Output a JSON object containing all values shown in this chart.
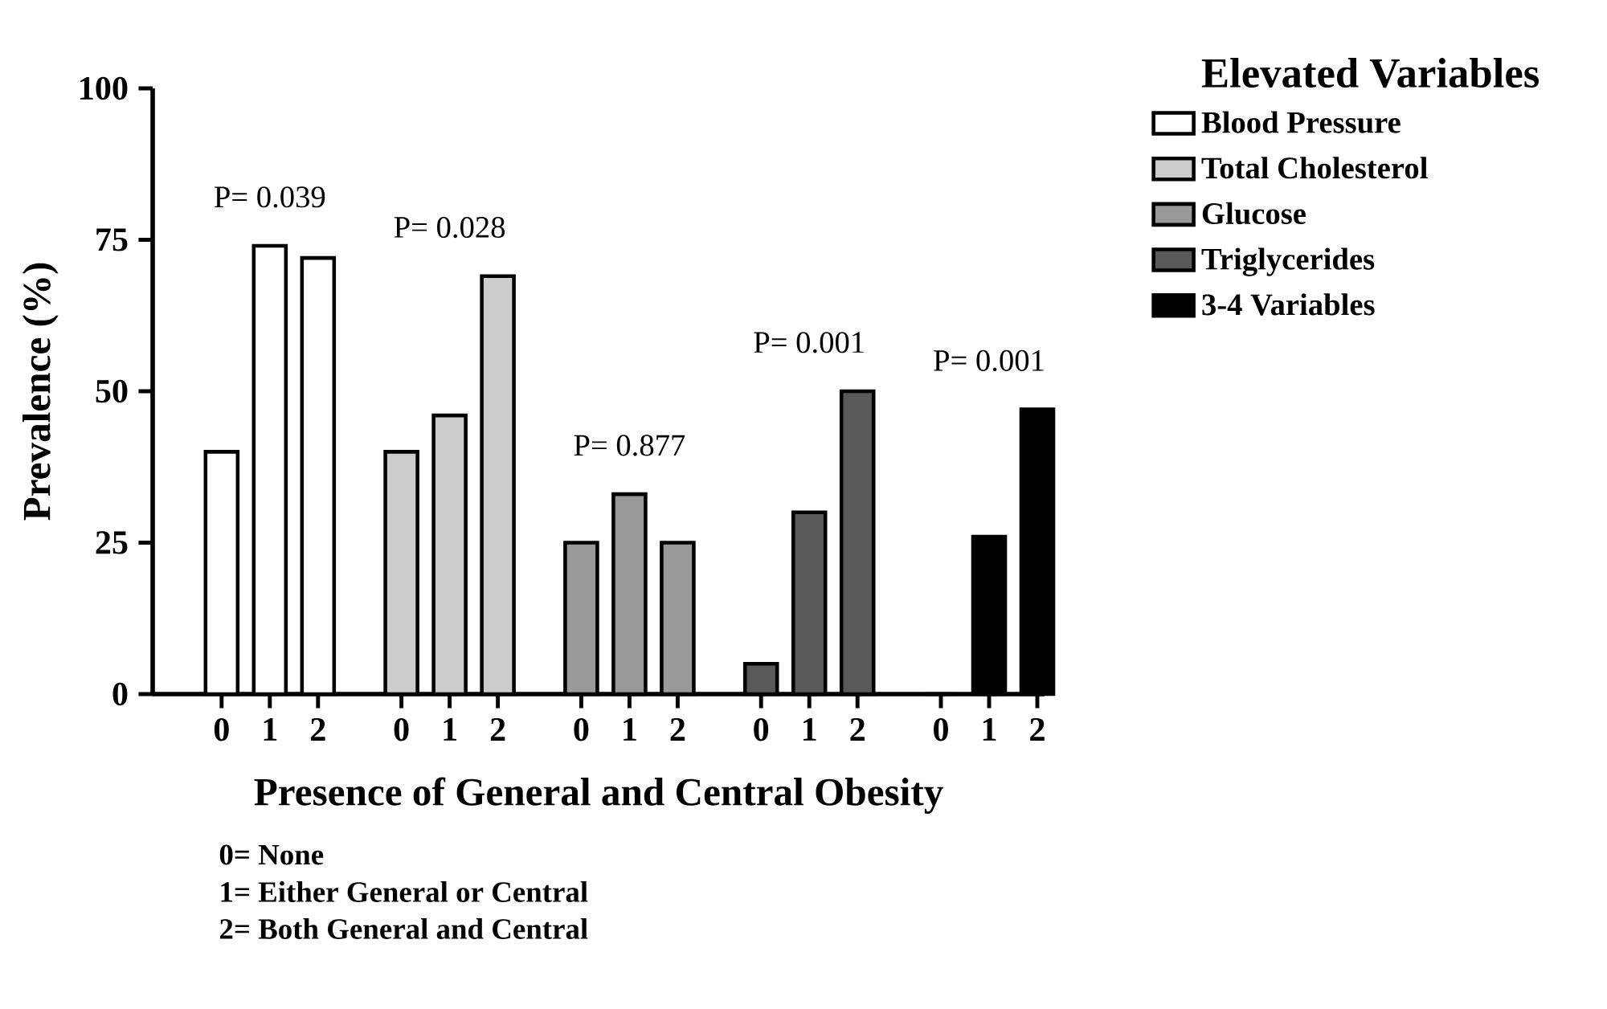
{
  "chart_data": {
    "type": "bar",
    "ylabel": "Prevalence (%)",
    "xlabel": "Presence of General and Central Obesity",
    "legend_title": "Elevated Variables",
    "categories": [
      "0",
      "1",
      "2",
      "0",
      "1",
      "2",
      "0",
      "1",
      "2",
      "0",
      "1",
      "2",
      "0",
      "1",
      "2"
    ],
    "series": [
      {
        "name": "Blood Pressure",
        "color": "#ffffff",
        "values": [
          40,
          74,
          72,
          null,
          null,
          null,
          null,
          null,
          null,
          null,
          null,
          null,
          null,
          null,
          null
        ]
      },
      {
        "name": "Total Cholesterol",
        "color": "#cccccc",
        "values": [
          null,
          null,
          null,
          40,
          46,
          69,
          null,
          null,
          null,
          null,
          null,
          null,
          null,
          null,
          null
        ]
      },
      {
        "name": "Glucose",
        "color": "#999999",
        "values": [
          null,
          null,
          null,
          null,
          null,
          null,
          25,
          33,
          25,
          null,
          null,
          null,
          null,
          null,
          null
        ]
      },
      {
        "name": "Triglycerides",
        "color": "#595959",
        "values": [
          null,
          null,
          null,
          null,
          null,
          null,
          null,
          null,
          null,
          5,
          30,
          50,
          null,
          null,
          null
        ]
      },
      {
        "name": "3-4 Variables",
        "color": "#000000",
        "values": [
          null,
          null,
          null,
          null,
          null,
          null,
          null,
          null,
          null,
          null,
          null,
          null,
          0,
          26,
          47
        ]
      }
    ],
    "ylim": [
      0,
      100
    ],
    "yticks": [
      0,
      25,
      50,
      75,
      100
    ],
    "grid": false,
    "legend": "top right",
    "annotations": [
      "P= 0.039",
      "P= 0.028",
      "P= 0.877",
      "P= 0.001",
      "P= 0.001",
      "0= None",
      "1= Either General or Central",
      "2= Both General and Central"
    ]
  }
}
